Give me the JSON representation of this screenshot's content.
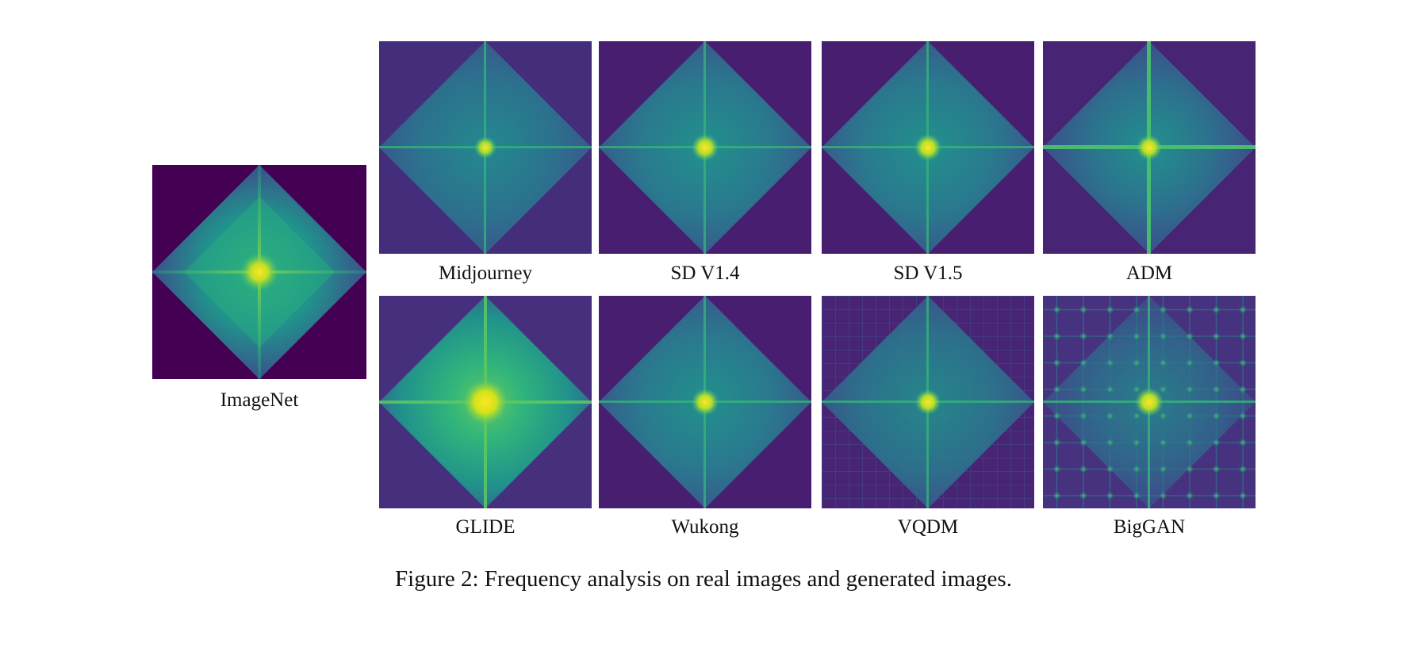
{
  "figure": {
    "caption": "Figure 2: Frequency analysis on real images and generated images.",
    "colormap": [
      "#440154",
      "#3b528b",
      "#21918c",
      "#5ec962",
      "#fde725"
    ],
    "panels": [
      {
        "key": "imagenet",
        "label": "ImageNet",
        "group": "real"
      },
      {
        "key": "midjourney",
        "label": "Midjourney",
        "group": "generated",
        "row": 1
      },
      {
        "key": "sd14",
        "label": "SD V1.4",
        "group": "generated",
        "row": 1
      },
      {
        "key": "sd15",
        "label": "SD V1.5",
        "group": "generated",
        "row": 1
      },
      {
        "key": "adm",
        "label": "ADM",
        "group": "generated",
        "row": 1
      },
      {
        "key": "glide",
        "label": "GLIDE",
        "group": "generated",
        "row": 2
      },
      {
        "key": "wukong",
        "label": "Wukong",
        "group": "generated",
        "row": 2
      },
      {
        "key": "vqdm",
        "label": "VQDM",
        "group": "generated",
        "row": 2
      },
      {
        "key": "biggan",
        "label": "BigGAN",
        "group": "generated",
        "row": 2
      }
    ]
  }
}
